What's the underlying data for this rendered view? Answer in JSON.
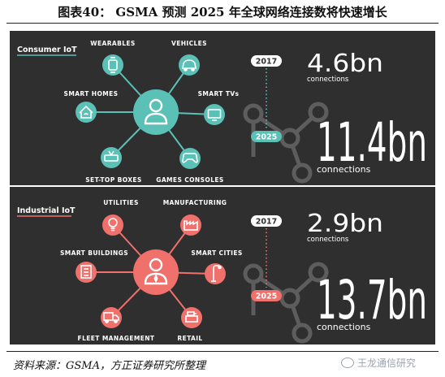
{
  "title": "图表40： GSMA 预测 2025 年全球网络连接数将快速增长",
  "source": "资料来源：GSMA，方正证券研究所整理",
  "watermark": "王龙通信研究",
  "colors": {
    "consumer_accent": "#5bc0b6",
    "industrial_accent": "#f0706c",
    "panel_bg": "#2f2f2f",
    "node_gray": "#5d5d5d"
  },
  "consumer": {
    "header": "Consumer IoT",
    "hub_icon": "person-icon",
    "nodes": [
      {
        "label": "WEARABLES",
        "icon": "smartwatch-icon"
      },
      {
        "label": "VEHICLES",
        "icon": "car-icon"
      },
      {
        "label": "SMART HOMES",
        "icon": "wifi-home-icon"
      },
      {
        "label": "SMART TVs",
        "icon": "tv-icon"
      },
      {
        "label": "SET-TOP BOXES",
        "icon": "set-top-box-icon"
      },
      {
        "label": "GAMES CONSOLES",
        "icon": "gamepad-icon"
      }
    ],
    "year_a": "2017",
    "value_a": "4.6bn",
    "unit_a": "connections",
    "year_b": "2025",
    "value_b": "11.4bn",
    "unit_b": "connections"
  },
  "industrial": {
    "header": "Industrial IoT",
    "hub_icon": "businessman-icon",
    "nodes": [
      {
        "label": "UTILITIES",
        "icon": "lightbulb-icon"
      },
      {
        "label": "MANUFACTURING",
        "icon": "factory-icon"
      },
      {
        "label": "SMART BUILDINGS",
        "icon": "building-icon"
      },
      {
        "label": "SMART CITIES",
        "icon": "streetlight-icon"
      },
      {
        "label": "FLEET MANAGEMENT",
        "icon": "truck-icon"
      },
      {
        "label": "RETAIL",
        "icon": "cash-register-icon"
      }
    ],
    "year_a": "2017",
    "value_a": "2.9bn",
    "unit_a": "connections",
    "year_b": "2025",
    "value_b": "13.7bn",
    "unit_b": "connections"
  }
}
